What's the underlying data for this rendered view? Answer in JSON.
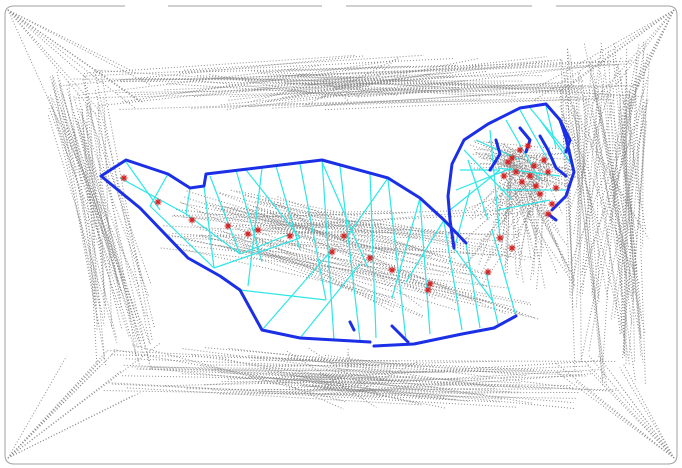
{
  "figure": {
    "description_hidden": false,
    "colors": {
      "background": "#ffffff",
      "frame": "#9a9a9a",
      "dotted_lines": "#8c8c8c",
      "outline": "#1a2fe6",
      "triangulation": "#2ee6e6",
      "markers": "#d42020"
    },
    "layers": [
      "frame",
      "dotted-skeleton-field",
      "cyan-triangulation",
      "blue-outline",
      "red-star-markers"
    ]
  }
}
